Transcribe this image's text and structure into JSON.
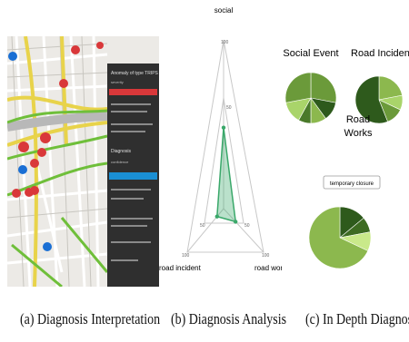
{
  "captions": {
    "a": "(a) Diagnosis Interpretation",
    "b": "(b) Diagnosis Analysis",
    "c": "(c) In Depth Diagnosis"
  },
  "map_panel": {
    "anomaly_title": "Anomaly of type TRIPS",
    "anomaly_sub": "severity",
    "diagnosis_title": "Diagnosis",
    "diagnosis_sub": "confidence",
    "colors": {
      "accent_red": "#d9383a",
      "accent_blue": "#1a8fd4",
      "road_yellow": "#e8d34a",
      "road_green": "#6fbf3a"
    }
  },
  "radar": {
    "axes": [
      "social",
      "road incident",
      "road work"
    ],
    "tick_labels": [
      "50",
      "100"
    ],
    "values": {
      "social": 48,
      "road incident": 18,
      "road work": 30
    },
    "color": "#3aa86a"
  },
  "pies": {
    "labels": {
      "social": "Social Event",
      "incident": "Road Incident",
      "works_line1": "Road",
      "works_line2": "Works"
    },
    "tooltip": "temporary closure",
    "colors": [
      "#2e5a1c",
      "#4a7a2a",
      "#6b9a3a",
      "#8cb84e",
      "#a9d46a",
      "#c9e98a",
      "#3d6b22"
    ]
  }
}
